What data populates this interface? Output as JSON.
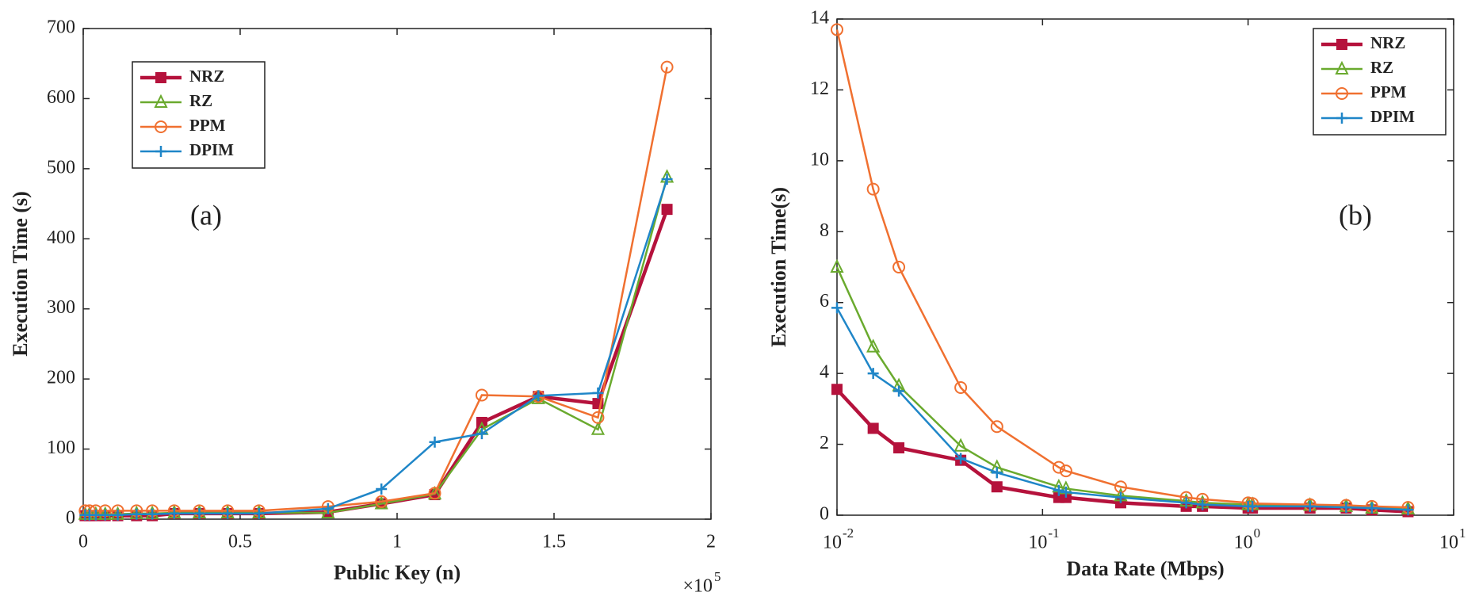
{
  "chart_data": [
    {
      "type": "line",
      "log_x": false,
      "legend": "upper left",
      "annotation": "(a)",
      "x_label": "Public Key (n)",
      "y_label": "Execution Time (s)",
      "x_multiplier": {
        "base": "×10",
        "exponent": "5"
      },
      "xlim": [
        0,
        2
      ],
      "xticks": [
        0,
        0.5,
        1,
        1.5,
        2
      ],
      "ylim": [
        0,
        700
      ],
      "yticks": [
        0,
        100,
        200,
        300,
        400,
        500,
        600,
        700
      ],
      "x": [
        0.006,
        0.02,
        0.04,
        0.07,
        0.11,
        0.17,
        0.22,
        0.29,
        0.37,
        0.46,
        0.56,
        0.78,
        0.95,
        1.12,
        1.27,
        1.45,
        1.64,
        1.86
      ],
      "series": [
        {
          "name": "NRZ",
          "color": "#b5123c",
          "marker": "square",
          "values": [
            5,
            5,
            5,
            5,
            5,
            5,
            5,
            8,
            8,
            8,
            8,
            10,
            22,
            35,
            138,
            175,
            165,
            442
          ]
        },
        {
          "name": "RZ",
          "color": "#6aaa2e",
          "marker": "triangle",
          "values": [
            7,
            7,
            7,
            7,
            7,
            8,
            8,
            9,
            9,
            9,
            9,
            9,
            22,
            36,
            128,
            172,
            128,
            488
          ]
        },
        {
          "name": "PPM",
          "color": "#f07030",
          "marker": "circle",
          "values": [
            12,
            12,
            12,
            12,
            12,
            12,
            12,
            12,
            12,
            12,
            12,
            18,
            25,
            37,
            177,
            175,
            145,
            645
          ]
        },
        {
          "name": "DPIM",
          "color": "#1f86c8",
          "marker": "plus",
          "values": [
            6,
            6,
            6,
            6,
            6,
            7,
            7,
            8,
            8,
            8,
            8,
            15,
            43,
            110,
            122,
            176,
            180,
            485
          ]
        }
      ]
    },
    {
      "type": "line",
      "log_x": true,
      "legend": "upper right",
      "annotation": "(b)",
      "x_label": "Data Rate (Mbps)",
      "y_label": "Execution Time(s)",
      "xlim": [
        0.01,
        10
      ],
      "xticks": [
        {
          "value": 0.01,
          "label": "10",
          "exponent": "-2"
        },
        {
          "value": 0.1,
          "label": "10",
          "exponent": "-1"
        },
        {
          "value": 1,
          "label": "10",
          "exponent": "0"
        },
        {
          "value": 10,
          "label": "10",
          "exponent": "1"
        }
      ],
      "ylim": [
        0,
        14
      ],
      "yticks": [
        0,
        2,
        4,
        6,
        8,
        10,
        12,
        14
      ],
      "x": [
        0.01,
        0.015,
        0.02,
        0.04,
        0.06,
        0.12,
        0.13,
        0.24,
        0.5,
        0.6,
        1,
        1.05,
        2,
        3,
        4,
        6
      ],
      "series": [
        {
          "name": "NRZ",
          "color": "#b5123c",
          "marker": "square",
          "values": [
            3.55,
            2.45,
            1.9,
            1.55,
            0.8,
            0.5,
            0.5,
            0.35,
            0.25,
            0.25,
            0.2,
            0.2,
            0.2,
            0.2,
            0.15,
            0.1
          ]
        },
        {
          "name": "RZ",
          "color": "#6aaa2e",
          "marker": "triangle",
          "values": [
            7.0,
            4.75,
            3.65,
            1.95,
            1.35,
            0.8,
            0.75,
            0.55,
            0.4,
            0.35,
            0.3,
            0.3,
            0.28,
            0.25,
            0.2,
            0.18
          ]
        },
        {
          "name": "PPM",
          "color": "#f07030",
          "marker": "circle",
          "values": [
            13.7,
            9.2,
            7.0,
            3.6,
            2.5,
            1.35,
            1.25,
            0.8,
            0.5,
            0.45,
            0.35,
            0.33,
            0.3,
            0.28,
            0.25,
            0.22
          ]
        },
        {
          "name": "DPIM",
          "color": "#1f86c8",
          "marker": "plus",
          "values": [
            5.85,
            4.0,
            3.5,
            1.6,
            1.2,
            0.7,
            0.65,
            0.5,
            0.35,
            0.3,
            0.25,
            0.25,
            0.25,
            0.22,
            0.2,
            0.15
          ]
        }
      ]
    }
  ]
}
